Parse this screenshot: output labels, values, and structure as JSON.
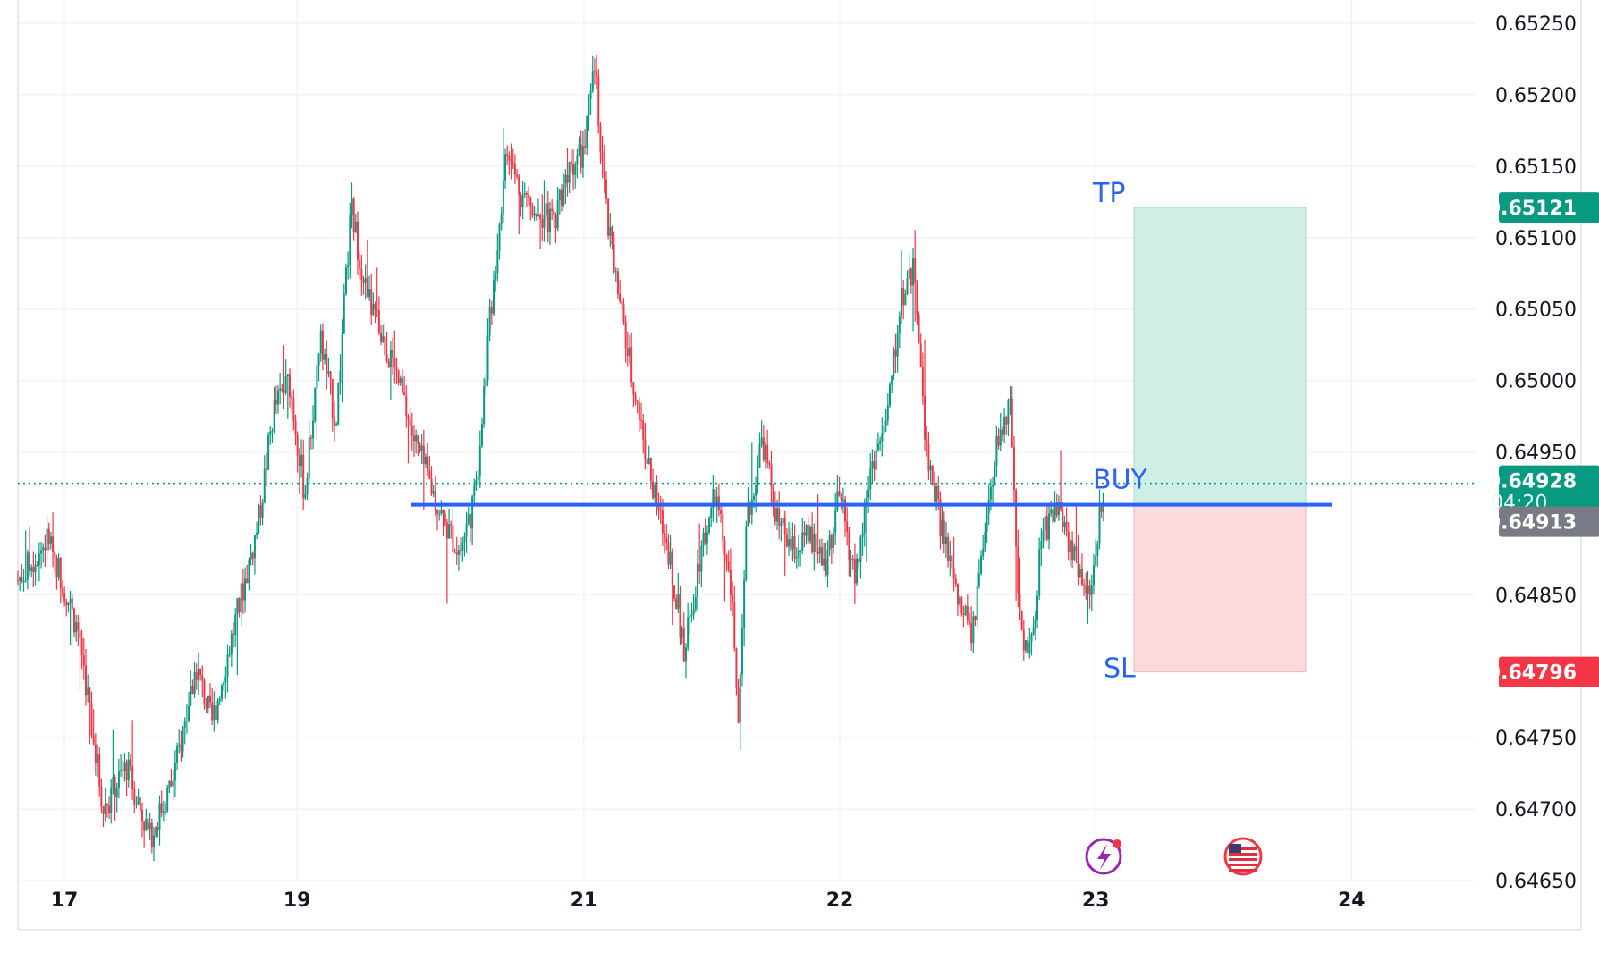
{
  "chart_data": {
    "type": "candlestick",
    "symbol": "",
    "y_ticks": [
      "0.65250",
      "0.65200",
      "0.65150",
      "0.65100",
      "0.65050",
      "0.65000",
      "0.64950",
      "0.64850",
      "0.64750",
      "0.64700",
      "0.64650"
    ],
    "ylim": [
      0.6465,
      0.6526
    ],
    "x_ticks": [
      {
        "label": "17",
        "t": 0.03
      },
      {
        "label": "19",
        "t": 0.18
      },
      {
        "label": "21",
        "t": 0.365
      },
      {
        "label": "22",
        "t": 0.53
      },
      {
        "label": "23",
        "t": 0.695
      },
      {
        "label": "24",
        "t": 0.86
      }
    ],
    "price_path": [
      [
        0.0,
        0.6486
      ],
      [
        0.02,
        0.6489
      ],
      [
        0.04,
        0.6482
      ],
      [
        0.055,
        0.647
      ],
      [
        0.07,
        0.6473
      ],
      [
        0.085,
        0.6468
      ],
      [
        0.1,
        0.6472
      ],
      [
        0.115,
        0.648
      ],
      [
        0.125,
        0.6476
      ],
      [
        0.14,
        0.6483
      ],
      [
        0.155,
        0.649
      ],
      [
        0.165,
        0.6498
      ],
      [
        0.175,
        0.65
      ],
      [
        0.185,
        0.6492
      ],
      [
        0.195,
        0.6503
      ],
      [
        0.205,
        0.6497
      ],
      [
        0.215,
        0.6512
      ],
      [
        0.225,
        0.6506
      ],
      [
        0.235,
        0.6503
      ],
      [
        0.245,
        0.65
      ],
      [
        0.255,
        0.6496
      ],
      [
        0.265,
        0.6493
      ],
      [
        0.275,
        0.649
      ],
      [
        0.285,
        0.6488
      ],
      [
        0.295,
        0.6492
      ],
      [
        0.305,
        0.6505
      ],
      [
        0.315,
        0.6516
      ],
      [
        0.325,
        0.6513
      ],
      [
        0.335,
        0.6512
      ],
      [
        0.345,
        0.6511
      ],
      [
        0.355,
        0.6515
      ],
      [
        0.365,
        0.6516
      ],
      [
        0.372,
        0.6522
      ],
      [
        0.38,
        0.6511
      ],
      [
        0.39,
        0.6504
      ],
      [
        0.4,
        0.6498
      ],
      [
        0.41,
        0.6492
      ],
      [
        0.42,
        0.6488
      ],
      [
        0.43,
        0.6481
      ],
      [
        0.44,
        0.6488
      ],
      [
        0.45,
        0.6492
      ],
      [
        0.46,
        0.6485
      ],
      [
        0.465,
        0.6476
      ],
      [
        0.47,
        0.649
      ],
      [
        0.48,
        0.6496
      ],
      [
        0.49,
        0.649
      ],
      [
        0.5,
        0.6488
      ],
      [
        0.51,
        0.6489
      ],
      [
        0.52,
        0.6487
      ],
      [
        0.53,
        0.6492
      ],
      [
        0.54,
        0.6486
      ],
      [
        0.55,
        0.6494
      ],
      [
        0.56,
        0.6497
      ],
      [
        0.57,
        0.6506
      ],
      [
        0.578,
        0.6508
      ],
      [
        0.585,
        0.6496
      ],
      [
        0.595,
        0.649
      ],
      [
        0.605,
        0.6485
      ],
      [
        0.615,
        0.6482
      ],
      [
        0.625,
        0.649
      ],
      [
        0.632,
        0.6496
      ],
      [
        0.64,
        0.6498
      ],
      [
        0.645,
        0.6484
      ],
      [
        0.65,
        0.6481
      ],
      [
        0.655,
        0.6482
      ],
      [
        0.66,
        0.6489
      ],
      [
        0.668,
        0.6491
      ],
      [
        0.675,
        0.649
      ],
      [
        0.68,
        0.6488
      ],
      [
        0.685,
        0.6487
      ],
      [
        0.69,
        0.6485
      ],
      [
        0.695,
        0.6488
      ],
      [
        0.7,
        0.6493
      ]
    ],
    "series": [
      {
        "name": "",
        "type": "line",
        "level": 0.64913
      },
      {
        "name": "",
        "type": "line",
        "level": 0.64928
      }
    ],
    "position": {
      "side": "long",
      "entry": 0.64913,
      "take_profit": 0.65121,
      "stop_loss": 0.64796
    },
    "annotations": [
      {
        "text": "TP",
        "level": 0.65121
      },
      {
        "text": "BUY",
        "level": 0.64913
      },
      {
        "text": "SL",
        "level": 0.64796
      }
    ],
    "badges": [
      {
        "text": "0.65121",
        "level": 0.65121,
        "color": "#089981"
      },
      {
        "text": "0.64928",
        "sub": "04:20",
        "level": 0.64928,
        "color": "#089981"
      },
      {
        "text": "0.64913",
        "level": 0.64913,
        "color": "#787b86"
      },
      {
        "text": "0.64796",
        "level": 0.64796,
        "color": "#f23645"
      }
    ],
    "colors": {
      "up": "#089981",
      "down": "#f23645",
      "grid": "#f0f3fa",
      "entry_line": "#2962ff",
      "profit_zone": "#cfeee6",
      "loss_zone": "#fadadb",
      "lightning_icon": "#9c27b0"
    },
    "grid": true,
    "icons": [
      "lightning-icon",
      "us-flag-icon"
    ]
  }
}
